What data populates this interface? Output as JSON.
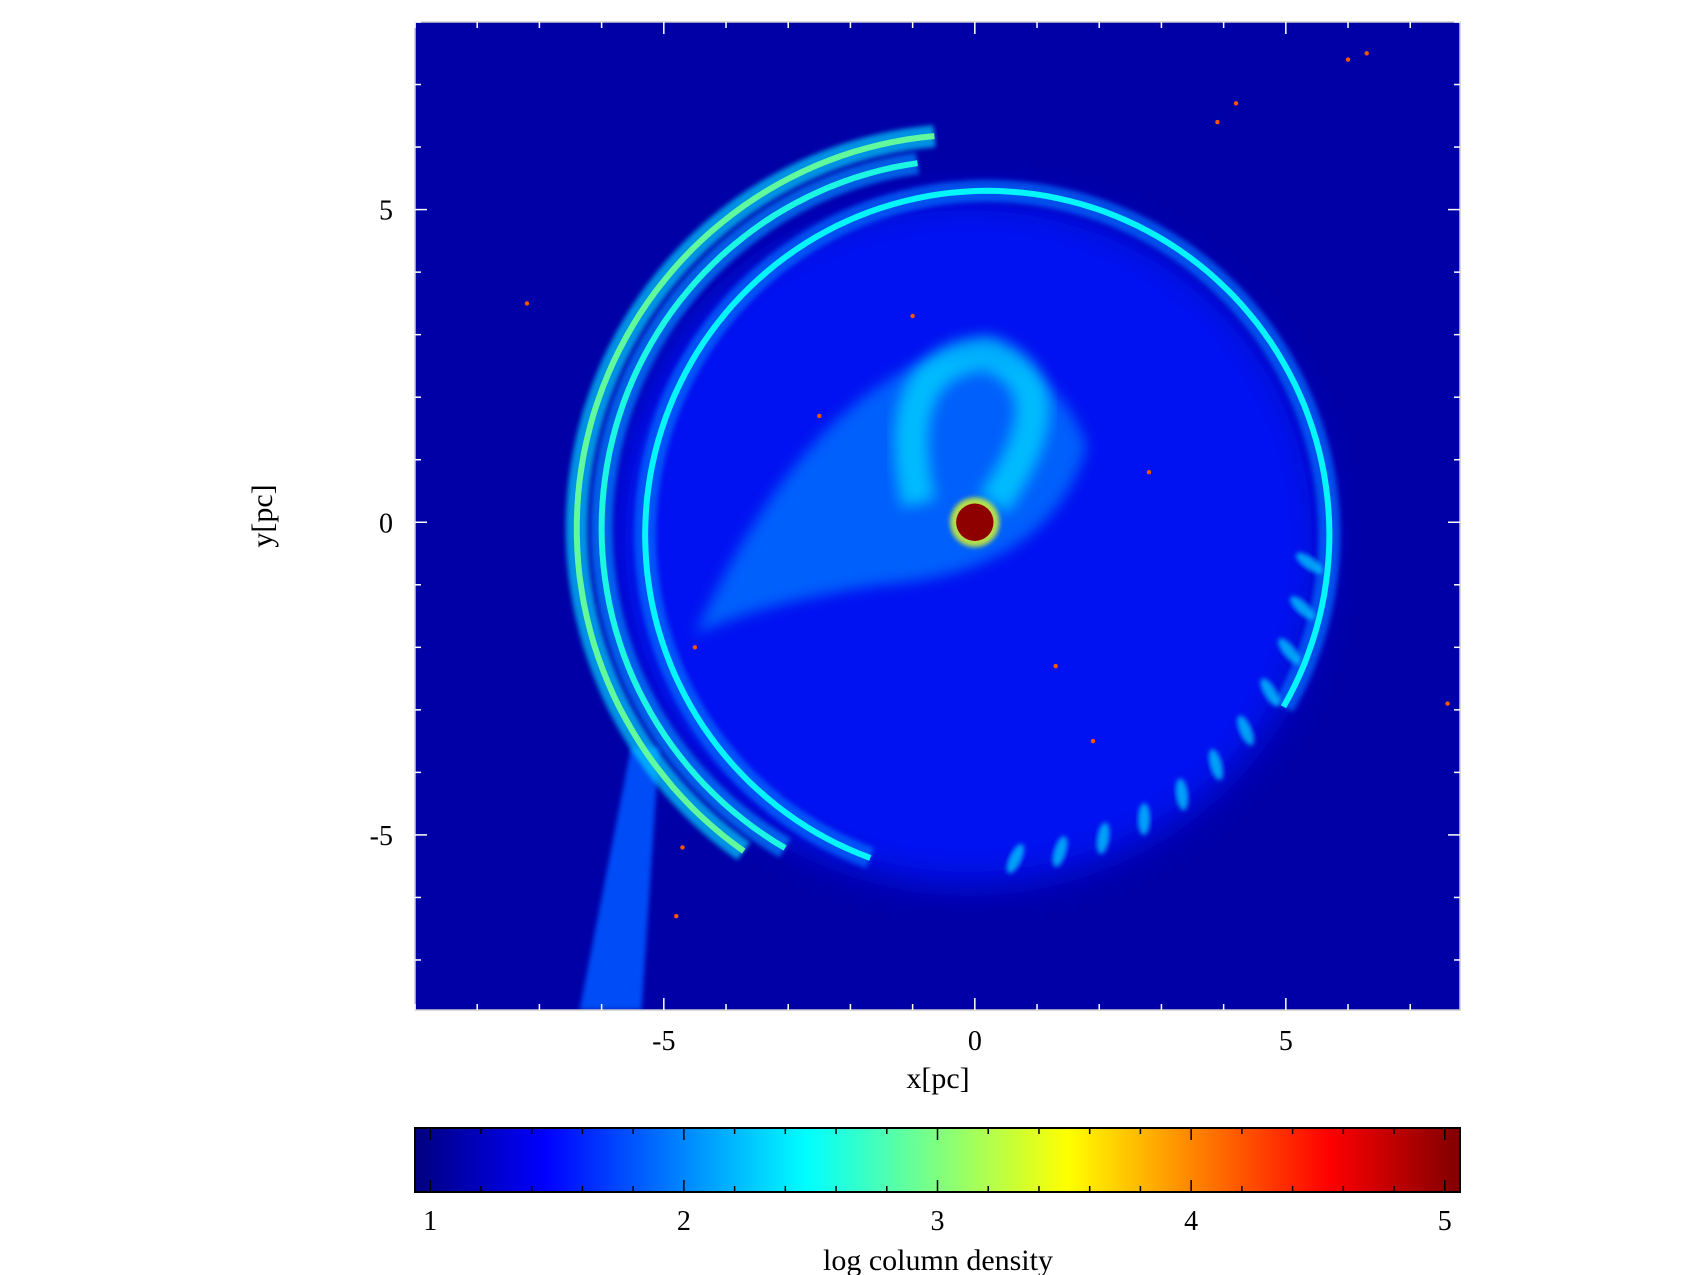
{
  "chart_data": {
    "type": "heatmap",
    "title": "",
    "xlabel": "x[pc]",
    "ylabel": "y[pc]",
    "xlim": [
      -9,
      7.8
    ],
    "ylim": [
      -7.8,
      8.0
    ],
    "xticks": [
      -5,
      0,
      5
    ],
    "yticks": [
      -5,
      0,
      5
    ],
    "xtick_labels": [
      "-5",
      "0",
      "5"
    ],
    "ytick_labels": [
      "-5",
      "0",
      "5"
    ],
    "colorbar": {
      "label": "log column density",
      "range": [
        0.94,
        5.06
      ],
      "ticks": [
        1,
        2,
        3,
        4,
        5
      ],
      "tick_labels": [
        "1",
        "2",
        "3",
        "4",
        "5"
      ],
      "colormap": "jet",
      "stops": [
        "#00007f",
        "#0000ff",
        "#007fff",
        "#00ffff",
        "#7fff7f",
        "#ffff00",
        "#ff7f00",
        "#ff0000",
        "#7f0000"
      ]
    },
    "background_value": 1.1,
    "features": {
      "central_source": {
        "x": 0.0,
        "y": 0.0,
        "radius_pc": 0.3,
        "value": 5.0
      },
      "outer_rings": [
        {
          "name": "ring-outer",
          "cx": -0.1,
          "cy": -0.1,
          "r": 6.3,
          "start_deg": 95,
          "end_deg": 235,
          "value": 2.9
        },
        {
          "name": "ring-middle",
          "cx": -0.1,
          "cy": -0.1,
          "r": 5.9,
          "start_deg": 98,
          "end_deg": 240,
          "value": 2.6
        },
        {
          "name": "ring-inner",
          "cx": 0.2,
          "cy": -0.2,
          "r": 5.5,
          "start_deg": -30,
          "end_deg": 250,
          "value": 2.5
        }
      ],
      "tail": {
        "x_start": -6.0,
        "y_start": -7.8,
        "x_end": -5.3,
        "y_end": -3.6,
        "value": 1.8
      },
      "hot_specks": [
        {
          "x": -7.2,
          "y": 3.5
        },
        {
          "x": 3.9,
          "y": 6.4
        },
        {
          "x": 4.2,
          "y": 6.7
        },
        {
          "x": 6.0,
          "y": 7.4
        },
        {
          "x": 6.3,
          "y": 7.5
        },
        {
          "x": 7.6,
          "y": -2.9
        },
        {
          "x": -4.5,
          "y": -2.0
        },
        {
          "x": -4.8,
          "y": -6.3
        },
        {
          "x": -2.5,
          "y": 1.7
        },
        {
          "x": -1.0,
          "y": 3.3
        },
        {
          "x": 2.8,
          "y": 0.8
        },
        {
          "x": 1.3,
          "y": -2.3
        },
        {
          "x": 1.9,
          "y": -3.5
        },
        {
          "x": -4.7,
          "y": -5.2
        }
      ]
    }
  }
}
